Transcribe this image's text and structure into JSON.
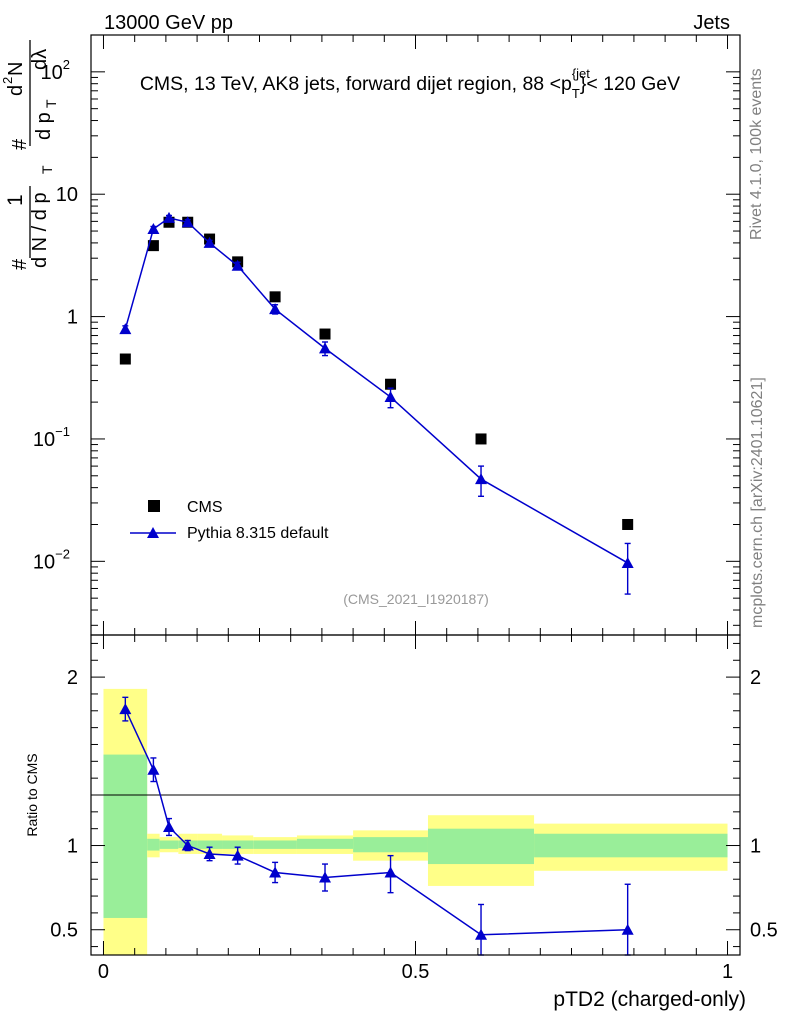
{
  "header": {
    "left": "13000 GeV pp",
    "right": "Jets"
  },
  "side_labels": {
    "rivet": "Rivet 4.1.0,  100k events",
    "mcplots": "mcplots.cern.ch [arXiv:2401.10621]"
  },
  "colors": {
    "data": "#000000",
    "mc": "#0000cc",
    "band_inner": "#99ee99",
    "band_outer": "#ffff88"
  },
  "chart_data": [
    {
      "type": "scatter",
      "title": "CMS, 13 TeV, AK8 jets, forward dijet region, 88 <p_T^{jet}< 120 GeV",
      "title_text": "CMS, 13 TeV, AK8 jets, forward dijet region, 88 <p",
      "title_sup": "{jet",
      "title_sub": "T",
      "title_tail": "}< 120 GeV",
      "analysis_tag": "(CMS_2021_I1920187)",
      "yscale": "log",
      "ylim": [
        0.0025,
        200
      ],
      "xlim": [
        -0.02,
        1.02
      ],
      "ylabel_parts": [
        "#",
        "1",
        "d N / d p",
        "T",
        "#",
        "d p",
        "T",
        "d",
        "2",
        "N",
        "dλ"
      ],
      "y_ticks": [
        {
          "value": 0.01,
          "base": "10",
          "exp": "−2"
        },
        {
          "value": 0.1,
          "base": "10",
          "exp": "−1"
        },
        {
          "value": 1,
          "base": "1",
          "exp": ""
        },
        {
          "value": 10,
          "base": "10",
          "exp": ""
        },
        {
          "value": 100,
          "base": "10",
          "exp": "2"
        }
      ],
      "legend": {
        "placement": "bottom-left",
        "entries": [
          "CMS",
          "Pythia 8.315 default"
        ]
      },
      "series": [
        {
          "name": "CMS",
          "marker": "square",
          "x": [
            0.035,
            0.08,
            0.105,
            0.135,
            0.17,
            0.215,
            0.275,
            0.355,
            0.46,
            0.605,
            0.84
          ],
          "y": [
            0.45,
            3.8,
            5.9,
            5.9,
            4.3,
            2.8,
            1.45,
            0.72,
            0.28,
            0.1,
            0.02
          ]
        },
        {
          "name": "Pythia 8.315 default",
          "marker": "triangle",
          "x": [
            0.035,
            0.08,
            0.105,
            0.135,
            0.17,
            0.215,
            0.275,
            0.355,
            0.46,
            0.605,
            0.84
          ],
          "y": [
            0.79,
            5.2,
            6.4,
            5.9,
            4.0,
            2.6,
            1.15,
            0.55,
            0.22,
            0.047,
            0.0097
          ],
          "err_lo": [
            0.05,
            0.25,
            0.3,
            0.3,
            0.2,
            0.18,
            0.1,
            0.07,
            0.04,
            0.013,
            0.0043
          ],
          "err_hi": [
            0.05,
            0.25,
            0.3,
            0.3,
            0.2,
            0.18,
            0.1,
            0.07,
            0.04,
            0.013,
            0.0043
          ]
        }
      ]
    },
    {
      "type": "line",
      "ylabel": "Ratio to CMS",
      "xlabel": "pTD2 (charged-only)",
      "ylim": [
        0.35,
        2.25
      ],
      "xlim": [
        -0.02,
        1.02
      ],
      "y_ticks": [
        0.5,
        1,
        2
      ],
      "y_tick_labels": [
        "0.5",
        "1",
        "2"
      ],
      "x_ticks": [
        0,
        0.5,
        1
      ],
      "x_tick_labels": [
        "0",
        "0.5",
        "1"
      ],
      "bands": [
        {
          "x0": 0.0,
          "x1": 0.07,
          "inner": [
            0.57,
            1.54
          ],
          "outer": [
            0.35,
            1.93
          ]
        },
        {
          "x0": 0.07,
          "x1": 0.09,
          "inner": [
            0.97,
            1.04
          ],
          "outer": [
            0.93,
            1.07
          ]
        },
        {
          "x0": 0.09,
          "x1": 0.12,
          "inner": [
            0.98,
            1.03
          ],
          "outer": [
            0.96,
            1.05
          ]
        },
        {
          "x0": 0.12,
          "x1": 0.15,
          "inner": [
            0.985,
            1.03
          ],
          "outer": [
            0.95,
            1.07
          ]
        },
        {
          "x0": 0.15,
          "x1": 0.19,
          "inner": [
            0.98,
            1.03
          ],
          "outer": [
            0.95,
            1.07
          ]
        },
        {
          "x0": 0.19,
          "x1": 0.24,
          "inner": [
            0.98,
            1.03
          ],
          "outer": [
            0.95,
            1.06
          ]
        },
        {
          "x0": 0.24,
          "x1": 0.31,
          "inner": [
            0.98,
            1.03
          ],
          "outer": [
            0.95,
            1.05
          ]
        },
        {
          "x0": 0.31,
          "x1": 0.4,
          "inner": [
            0.98,
            1.04
          ],
          "outer": [
            0.95,
            1.06
          ]
        },
        {
          "x0": 0.4,
          "x1": 0.52,
          "inner": [
            0.96,
            1.05
          ],
          "outer": [
            0.91,
            1.09
          ]
        },
        {
          "x0": 0.52,
          "x1": 0.69,
          "inner": [
            0.89,
            1.1
          ],
          "outer": [
            0.76,
            1.18
          ]
        },
        {
          "x0": 0.69,
          "x1": 1.0,
          "inner": [
            0.93,
            1.07
          ],
          "outer": [
            0.85,
            1.13
          ]
        }
      ],
      "ratio_series": {
        "name": "Pythia 8.315 default",
        "x": [
          0.035,
          0.08,
          0.105,
          0.135,
          0.17,
          0.215,
          0.275,
          0.355,
          0.46,
          0.605,
          0.84
        ],
        "y": [
          1.81,
          1.45,
          1.11,
          1.0,
          0.95,
          0.94,
          0.84,
          0.81,
          0.84,
          0.47,
          0.5
        ],
        "err_lo": [
          0.07,
          0.07,
          0.05,
          0.03,
          0.04,
          0.05,
          0.06,
          0.08,
          0.12,
          0.17,
          0.22
        ],
        "err_hi": [
          0.07,
          0.07,
          0.05,
          0.03,
          0.04,
          0.05,
          0.06,
          0.08,
          0.1,
          0.18,
          0.27
        ]
      }
    }
  ]
}
